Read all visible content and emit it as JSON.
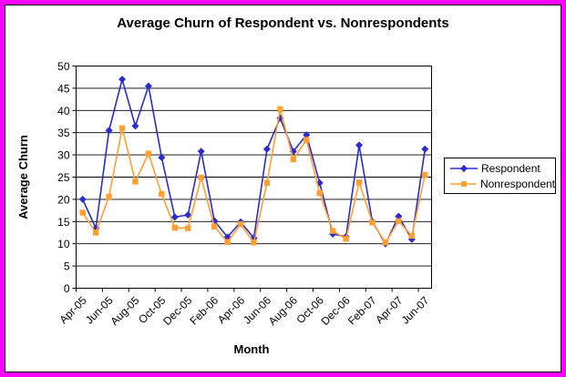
{
  "frame": {
    "border_color": "#FF00FF",
    "inner_line_color": "#000000",
    "background": "#FFFFFF"
  },
  "chart_data": {
    "type": "line",
    "title": "Average Churn of Respondent vs. Nonrespondents",
    "xlabel": "Month",
    "ylabel": "Average Churn",
    "ylim": [
      0,
      50
    ],
    "ytick_step": 5,
    "grid": true,
    "legend_position": "right",
    "x_label_every": 2,
    "x_label_rotation": -45,
    "categories": [
      "Apr-05",
      "May-05",
      "Jun-05",
      "Jul-05",
      "Aug-05",
      "Sep-05",
      "Oct-05",
      "Nov-05",
      "Dec-05",
      "Jan-06",
      "Feb-06",
      "Mar-06",
      "Apr-06",
      "May-06",
      "Jun-06",
      "Jul-06",
      "Aug-06",
      "Sep-06",
      "Oct-06",
      "Nov-06",
      "Dec-06",
      "Jan-07",
      "Feb-07",
      "Mar-07",
      "Apr-07",
      "May-07",
      "Jun-07"
    ],
    "series": [
      {
        "name": "Respondent",
        "color": "#2B2BD0",
        "marker": "diamond",
        "values": [
          20,
          13.5,
          35.5,
          47,
          36.5,
          45.5,
          29.4,
          16,
          16.5,
          30.8,
          15.2,
          11.5,
          14.9,
          11.3,
          31.3,
          38.3,
          30.8,
          34.5,
          23.7,
          12.2,
          11.6,
          32.2,
          15,
          10,
          16.2,
          11,
          31.3
        ]
      },
      {
        "name": "Nonrespondent",
        "color": "#FFA030",
        "marker": "square",
        "values": [
          17,
          12.5,
          20.6,
          36,
          24,
          30.3,
          21.2,
          13.6,
          13.5,
          24.9,
          13.9,
          10.4,
          14.4,
          10.3,
          23.7,
          40.3,
          29,
          33.4,
          21.4,
          12.9,
          11.1,
          23.8,
          14.8,
          10.3,
          15.1,
          11.8,
          25.5
        ]
      }
    ]
  }
}
